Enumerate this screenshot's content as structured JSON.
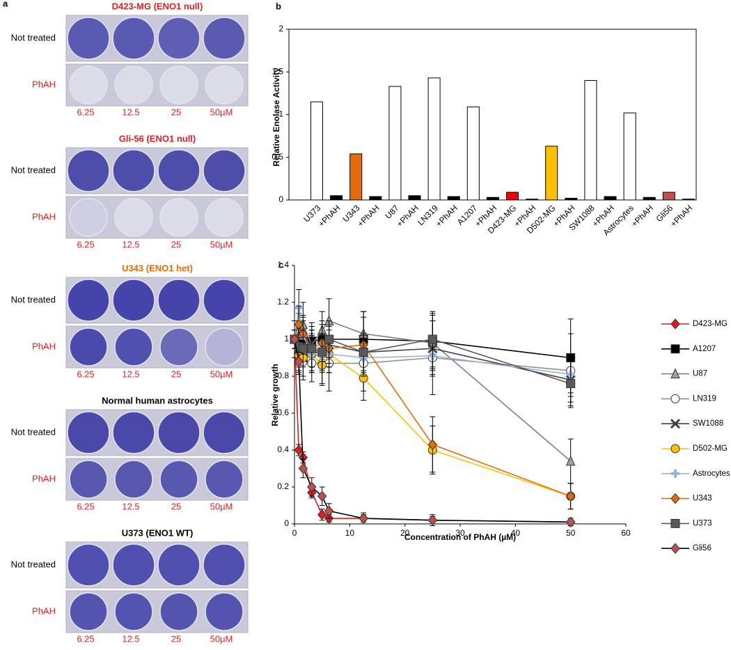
{
  "panel_a": {
    "label": "a",
    "groups": [
      {
        "title": "D423-MG (ENO1 null)",
        "title_color": "#e02020",
        "rows": [
          "Not treated",
          "PhAH"
        ],
        "concentrations": [
          "6.25",
          "12.5",
          "25",
          "50µM"
        ],
        "well_colors": [
          [
            "#5a5ab2",
            "#5a5ab2",
            "#5e5eb4",
            "#5a5ab2"
          ],
          [
            "#dcdce8",
            "#dcdce8",
            "#dcdce8",
            "#dcdce8"
          ]
        ]
      },
      {
        "title": "Gli-56 (ENO1 null)",
        "title_color": "#e02020",
        "rows": [
          "Not treated",
          "PhAH"
        ],
        "concentrations": [
          "6.25",
          "12.5",
          "25",
          "50µM"
        ],
        "well_colors": [
          [
            "#4d4daa",
            "#4d4daa",
            "#4d4daa",
            "#4d4daa"
          ],
          [
            "#cfcfe3",
            "#dcdce8",
            "#dcdce8",
            "#dcdce8"
          ]
        ]
      },
      {
        "title": "U343 (ENO1 het)",
        "title_color": "#e36c0a",
        "rows": [
          "Not treated",
          "PhAH"
        ],
        "concentrations": [
          "6.25",
          "12.5",
          "25",
          "50µM"
        ],
        "well_colors": [
          [
            "#4444aa",
            "#4444aa",
            "#4444aa",
            "#4444aa"
          ],
          [
            "#4a4aac",
            "#5050b0",
            "#6a6ab8",
            "#b4b4d6"
          ]
        ]
      },
      {
        "title": "Normal human astrocytes",
        "title_color": "#000000",
        "rows": [
          "Not treated",
          "PhAH"
        ],
        "concentrations": [
          "6.25",
          "12.5",
          "25",
          "50µM"
        ],
        "well_colors": [
          [
            "#4a48a8",
            "#4a48a8",
            "#4a48a8",
            "#4a48a8"
          ],
          [
            "#5858b0",
            "#5858b0",
            "#5858b0",
            "#5858b0"
          ]
        ]
      },
      {
        "title": "U373 (ENO1 WT)",
        "title_color": "#000000",
        "rows": [
          "Not treated",
          "PhAH"
        ],
        "concentrations": [
          "6.25",
          "12.5",
          "25",
          "50µM"
        ],
        "well_colors": [
          [
            "#5050b0",
            "#5050b0",
            "#5050b0",
            "#5050b0"
          ],
          [
            "#5454b0",
            "#5454b0",
            "#5454b0",
            "#5454b0"
          ]
        ]
      }
    ]
  },
  "chart_data": [
    {
      "type": "bar",
      "label": "b",
      "y_label": "Relative Enolase Activity",
      "categories": [
        "U373",
        "+PhAH",
        "U343",
        "+PhAH",
        "U87",
        "+PhAH",
        "LN319",
        "+PhAH",
        "A1207",
        "+PhAH",
        "D423-MG",
        "+PhAH",
        "D502-MG",
        "+PhAH",
        "SW1088",
        "+PhAH",
        "Astrocytes",
        "+PhAH",
        "Gli56",
        "+PhAH"
      ],
      "values": [
        1.15,
        0.05,
        0.54,
        0.04,
        1.33,
        0.05,
        1.43,
        0.04,
        1.09,
        0.03,
        0.09,
        0.01,
        0.63,
        0.02,
        1.4,
        0.04,
        1.02,
        0.03,
        0.09,
        0.01
      ],
      "colors": [
        "#ffffff",
        "#000000",
        "#e36c0a",
        "#000000",
        "#ffffff",
        "#000000",
        "#ffffff",
        "#000000",
        "#ffffff",
        "#000000",
        "#ff0000",
        "#000000",
        "#ffc000",
        "#000000",
        "#ffffff",
        "#000000",
        "#ffffff",
        "#000000",
        "#c0504d",
        "#000000"
      ],
      "ylim": [
        0,
        2
      ],
      "yticks": [
        0,
        0.5,
        1,
        1.5,
        2
      ]
    },
    {
      "type": "line",
      "label": "c",
      "x_label": "Concentration of PhAH (µM)",
      "y_label": "Relative growth",
      "x": [
        0,
        0.78,
        1.56,
        3.125,
        5,
        6.25,
        12.5,
        25,
        50
      ],
      "xlim": [
        0,
        60
      ],
      "xticks": [
        0,
        10,
        20,
        30,
        40,
        50,
        60
      ],
      "ylim": [
        0,
        1.4
      ],
      "yticks": [
        0,
        0.2,
        0.4,
        0.6,
        0.8,
        1,
        1.2,
        1.4
      ],
      "series": [
        {
          "name": "D423-MG",
          "color": "#e31a1c",
          "marker": "diamond",
          "marker_color": "#e31a1c",
          "values": [
            1.0,
            0.4,
            0.36,
            0.17,
            0.05,
            0.03,
            0.03,
            0.02,
            0.01
          ],
          "errors": [
            0.05,
            0.03,
            0.03,
            0.03,
            0.03,
            0.02,
            0.02,
            0.02,
            0.02
          ]
        },
        {
          "name": "A1207",
          "color": "#000000",
          "marker": "square",
          "marker_color": "#000000",
          "values": [
            1.0,
            1.0,
            1.0,
            0.99,
            1.0,
            1.0,
            1.0,
            0.99,
            0.9
          ],
          "errors": [
            0.1,
            0.1,
            0.1,
            0.1,
            0.1,
            0.1,
            0.15,
            0.15,
            0.21
          ]
        },
        {
          "name": "U87",
          "color": "#808080",
          "marker": "triangle",
          "marker_color": "#a0a0a0",
          "values": [
            1.0,
            1.02,
            1.08,
            0.97,
            1.05,
            1.1,
            1.03,
            0.98,
            0.34
          ],
          "errors": [
            0.1,
            0.12,
            0.12,
            0.1,
            0.1,
            0.12,
            0.12,
            0.15,
            0.12
          ]
        },
        {
          "name": "LN319",
          "color": "#909090",
          "marker": "circle",
          "marker_color": "#ffffff",
          "values": [
            1.0,
            0.92,
            0.88,
            0.87,
            0.87,
            0.87,
            0.87,
            0.9,
            0.83
          ],
          "errors": [
            0.1,
            0.1,
            0.1,
            0.1,
            0.12,
            0.15,
            0.15,
            0.2,
            0.2
          ]
        },
        {
          "name": "SW1088",
          "color": "#404040",
          "marker": "x",
          "marker_color": "#ffffff",
          "values": [
            1.0,
            0.95,
            0.9,
            0.93,
            0.93,
            0.97,
            0.93,
            0.95,
            0.78
          ],
          "errors": [
            0.1,
            0.1,
            0.1,
            0.1,
            0.1,
            0.1,
            0.1,
            0.15,
            0.12
          ]
        },
        {
          "name": "D502-MG",
          "color": "#ffc000",
          "marker": "circle",
          "marker_color": "#ffc000",
          "values": [
            1.0,
            0.91,
            0.9,
            0.92,
            0.86,
            0.92,
            0.79,
            0.4,
            0.15
          ],
          "errors": [
            0.1,
            0.1,
            0.1,
            0.1,
            0.1,
            0.1,
            0.12,
            0.13,
            0.07
          ]
        },
        {
          "name": "Astrocytes",
          "color": "#95b3d7",
          "marker": "plus",
          "marker_color": "#95b3d7",
          "values": [
            1.0,
            1.17,
            1.02,
            0.92,
            0.92,
            0.92,
            0.9,
            0.91,
            0.81
          ],
          "errors": [
            0.1,
            0.1,
            0.1,
            0.1,
            0.1,
            0.1,
            0.1,
            0.1,
            0.1
          ]
        },
        {
          "name": "U343",
          "color": "#e36c0a",
          "marker": "diamond",
          "marker_color": "#e36c0a",
          "values": [
            1.0,
            1.08,
            1.03,
            0.95,
            0.98,
            0.95,
            0.97,
            0.43,
            0.15
          ],
          "errors": [
            0.1,
            0.1,
            0.1,
            0.1,
            0.1,
            0.1,
            0.15,
            0.15,
            0.07
          ]
        },
        {
          "name": "U373",
          "color": "#595959",
          "marker": "square",
          "marker_color": "#595959",
          "values": [
            1.0,
            0.96,
            0.95,
            0.95,
            0.93,
            1.0,
            0.93,
            1.0,
            0.76
          ],
          "errors": [
            0.1,
            0.1,
            0.1,
            0.1,
            0.1,
            0.1,
            0.1,
            0.15,
            0.12
          ]
        },
        {
          "name": "Gli56",
          "color": "#000000",
          "marker": "diamond",
          "marker_color": "#c0504d",
          "values": [
            1.0,
            0.88,
            0.3,
            0.2,
            0.15,
            0.07,
            0.03,
            0.02,
            0.01
          ],
          "errors": [
            0.05,
            0.05,
            0.05,
            0.05,
            0.05,
            0.04,
            0.03,
            0.03,
            0.02
          ]
        }
      ]
    }
  ]
}
